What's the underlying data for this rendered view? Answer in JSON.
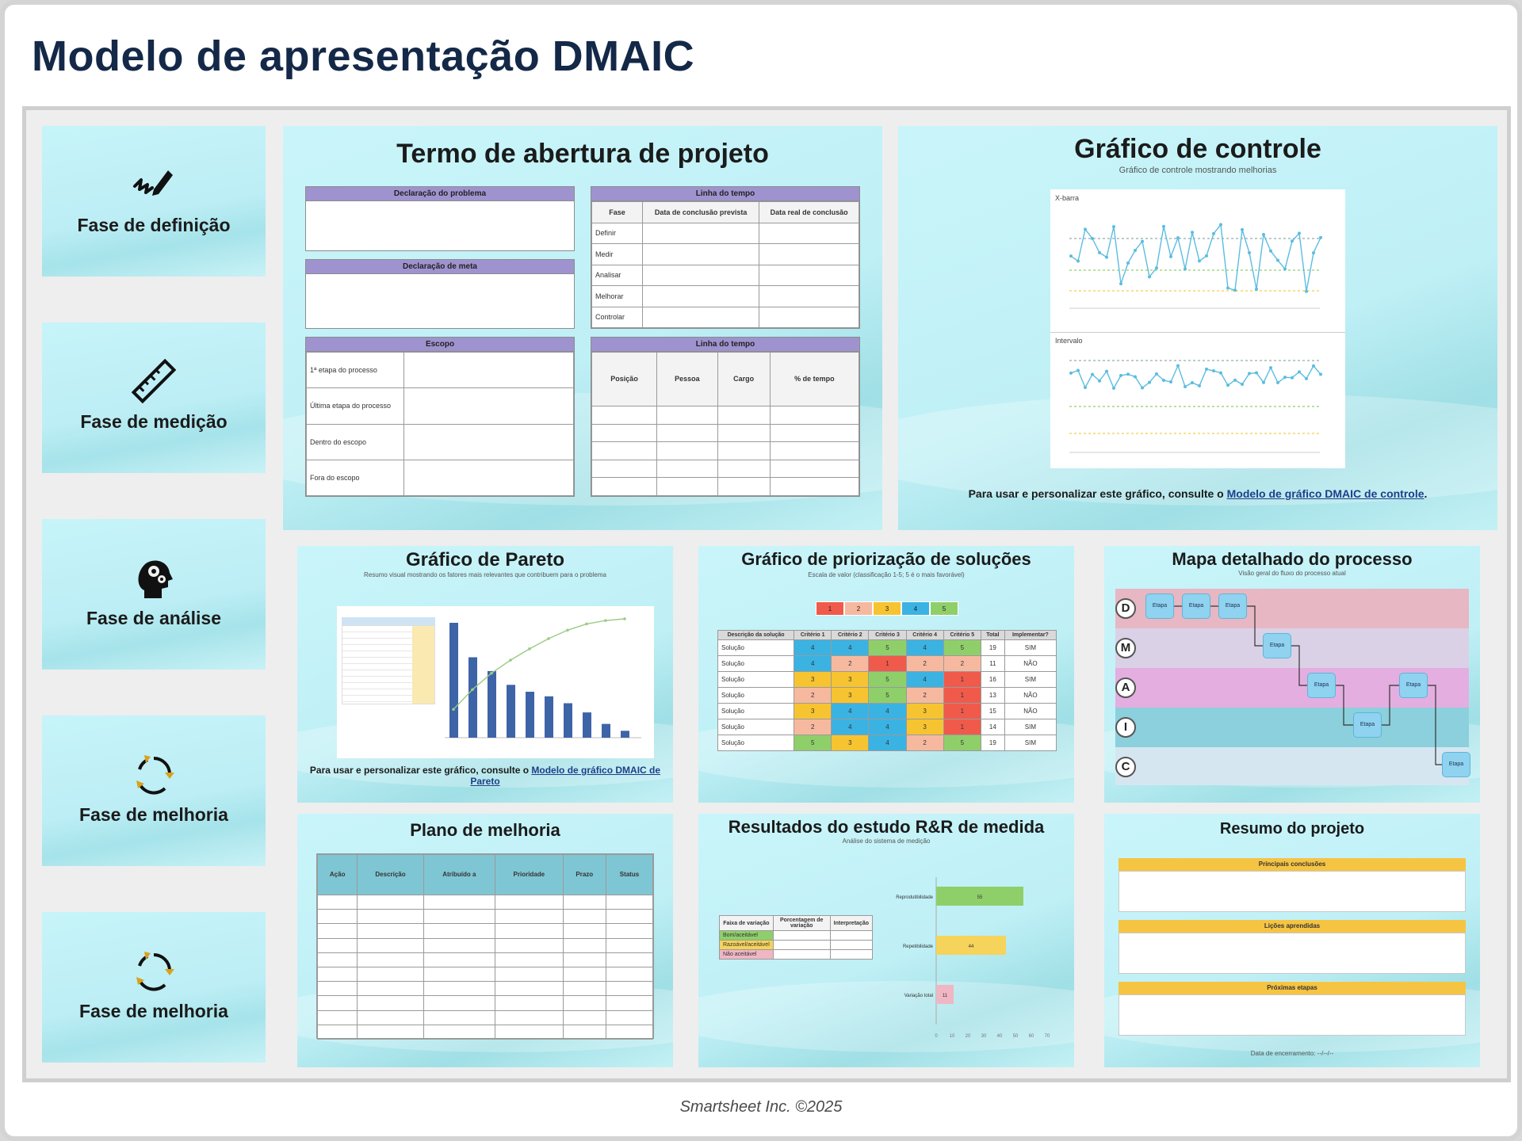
{
  "title": "Modelo de apresentação DMAIC",
  "footer": "Smartsheet Inc. ©2025",
  "phases": [
    {
      "label": "Fase de definição",
      "icon": "pen-signature-icon"
    },
    {
      "label": "Fase de medição",
      "icon": "ruler-icon"
    },
    {
      "label": "Fase de análise",
      "icon": "head-gears-icon"
    },
    {
      "label": "Fase de melhoria",
      "icon": "cycle-arrows-icon"
    },
    {
      "label": "Fase de melhoria",
      "icon": "cycle-arrows-icon"
    }
  ],
  "charter": {
    "title": "Termo de abertura de projeto",
    "problem_header": "Declaração do problema",
    "goal_header": "Declaração de meta",
    "scope_header": "Escopo",
    "scope_rows": [
      "1ª etapa do processo",
      "Última etapa do processo",
      "Dentro do escopo",
      "Fora do escopo"
    ],
    "timeline_header": "Linha do tempo",
    "timeline_cols": [
      "Fase",
      "Data de conclusão prevista",
      "Data real de conclusão"
    ],
    "timeline_rows": [
      "Definir",
      "Medir",
      "Analisar",
      "Melhorar",
      "Controlar"
    ],
    "team_header": "Linha do tempo",
    "team_cols": [
      "Posição",
      "Pessoa",
      "Cargo",
      "% de tempo"
    ]
  },
  "control": {
    "title": "Gráfico de controle",
    "subtitle": "Gráfico de controle mostrando melhorias",
    "chart1_label": "X-barra",
    "chart2_label": "Intervalo",
    "note_prefix": "Para usar e personalizar este gráfico, consulte o ",
    "note_link": "Modelo de gráfico DMAIC de controle",
    "note_suffix": "."
  },
  "pareto": {
    "title": "Gráfico de Pareto",
    "subtitle": "Resumo visual mostrando os fatores mais relevantes que contribuem para o problema",
    "note_prefix": "Para usar e personalizar este gráfico, consulte o ",
    "note_link": "Modelo de gráfico DMAIC de Pareto"
  },
  "priority": {
    "title": "Gráfico de priorização de soluções",
    "subtitle": "Escala de valor (classificação 1-5; 5 é o mais favorável)",
    "legend_values": [
      "1",
      "2",
      "3",
      "4",
      "5"
    ],
    "columns": [
      "Descrição da solução",
      "Critério 1",
      "Critério 2",
      "Critério 3",
      "Critério 4",
      "Critério 5",
      "Total",
      "Implementar?"
    ],
    "rows": [
      {
        "name": "Solução",
        "scores": [
          "4",
          "4",
          "5",
          "4",
          "5"
        ],
        "total": "19",
        "impl": "SIM"
      },
      {
        "name": "Solução",
        "scores": [
          "4",
          "2",
          "1",
          "2",
          "2"
        ],
        "total": "11",
        "impl": "NÃO"
      },
      {
        "name": "Solução",
        "scores": [
          "3",
          "3",
          "5",
          "4",
          "1"
        ],
        "total": "16",
        "impl": "SIM"
      },
      {
        "name": "Solução",
        "scores": [
          "2",
          "3",
          "5",
          "2",
          "1"
        ],
        "total": "13",
        "impl": "NÃO"
      },
      {
        "name": "Solução",
        "scores": [
          "3",
          "4",
          "4",
          "3",
          "1"
        ],
        "total": "15",
        "impl": "NÃO"
      },
      {
        "name": "Solução",
        "scores": [
          "2",
          "4",
          "4",
          "3",
          "1"
        ],
        "total": "14",
        "impl": "SIM"
      },
      {
        "name": "Solução",
        "scores": [
          "5",
          "3",
          "4",
          "2",
          "5"
        ],
        "total": "19",
        "impl": "SIM"
      }
    ]
  },
  "process_map": {
    "title": "Mapa detalhado do processo",
    "subtitle": "Visão geral do fluxo do processo atual",
    "lanes": [
      "D",
      "M",
      "A",
      "I",
      "C"
    ],
    "step_label": "Etapa"
  },
  "improvement_plan": {
    "title": "Plano de melhoria",
    "columns": [
      "Ação",
      "Descrição",
      "Atribuído a",
      "Prioridade",
      "Prazo",
      "Status"
    ]
  },
  "rr": {
    "title": "Resultados do estudo R&R de medida",
    "subtitle": "Análise do sistema de medição",
    "table_cols": [
      "Faixa de variação",
      "Porcentagem de variação",
      "Interpretação"
    ],
    "table_rows": [
      "Bom/aceitável",
      "Razoável/aceitável",
      "Não aceitável"
    ],
    "bars": [
      {
        "label": "Reprodutibilidade",
        "value": 55,
        "color": "#8fcf6a"
      },
      {
        "label": "Repetibilidade",
        "value": 44,
        "color": "#f6d35a"
      },
      {
        "label": "Variação total",
        "value": 11,
        "color": "#f0b6c4"
      }
    ],
    "axis_max": 70
  },
  "summary": {
    "title": "Resumo do projeto",
    "sections": [
      "Principais conclusões",
      "Lições aprendidas",
      "Próximas etapas"
    ],
    "footer": "Data de encerramento: --/--/--"
  },
  "colors": {
    "accent_navy": "#142848",
    "slide_cyan": "#c3f3f8",
    "header_purple": "#9f93cf",
    "header_yellow": "#f6c443",
    "table_teal": "#7fc6d4"
  }
}
